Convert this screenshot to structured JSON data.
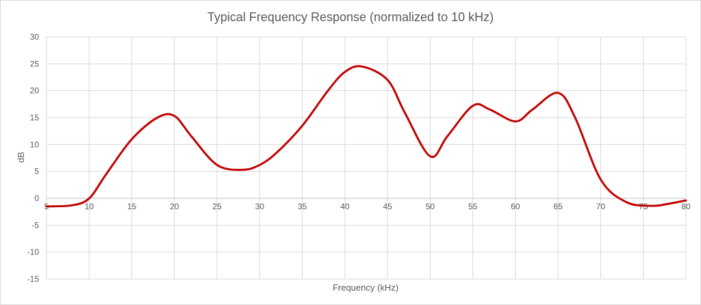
{
  "chart_data": {
    "type": "line",
    "title": "Typical Frequency Response (normalized to 10 kHz)",
    "xlabel": "Frequency (kHz)",
    "ylabel": "dB",
    "xlim": [
      5,
      80
    ],
    "ylim": [
      -15,
      30
    ],
    "xticks": [
      5,
      10,
      15,
      20,
      25,
      30,
      35,
      40,
      45,
      50,
      55,
      60,
      65,
      70,
      75,
      80
    ],
    "yticks": [
      -15,
      -10,
      -5,
      0,
      5,
      10,
      15,
      20,
      25,
      30
    ],
    "grid": true,
    "legend": "none",
    "line_color": "#c00000",
    "series": [
      {
        "x": [
          5,
          8,
          10,
          12,
          15,
          18,
          20,
          22,
          25,
          28,
          30,
          32,
          35,
          38,
          40,
          42,
          45,
          47,
          50,
          52,
          55,
          57,
          60,
          62,
          65,
          67,
          70,
          73,
          76,
          78,
          80
        ],
        "values": [
          -1.5,
          -1.3,
          0,
          4.5,
          11,
          15,
          15.3,
          11.5,
          6.2,
          5.3,
          6.2,
          8.5,
          13.5,
          20,
          23.5,
          24.5,
          22,
          16,
          7.8,
          11.5,
          17.2,
          16.5,
          14.3,
          16.5,
          19.6,
          15,
          3.5,
          -0.7,
          -1.4,
          -1.0,
          -0.4
        ]
      }
    ]
  }
}
